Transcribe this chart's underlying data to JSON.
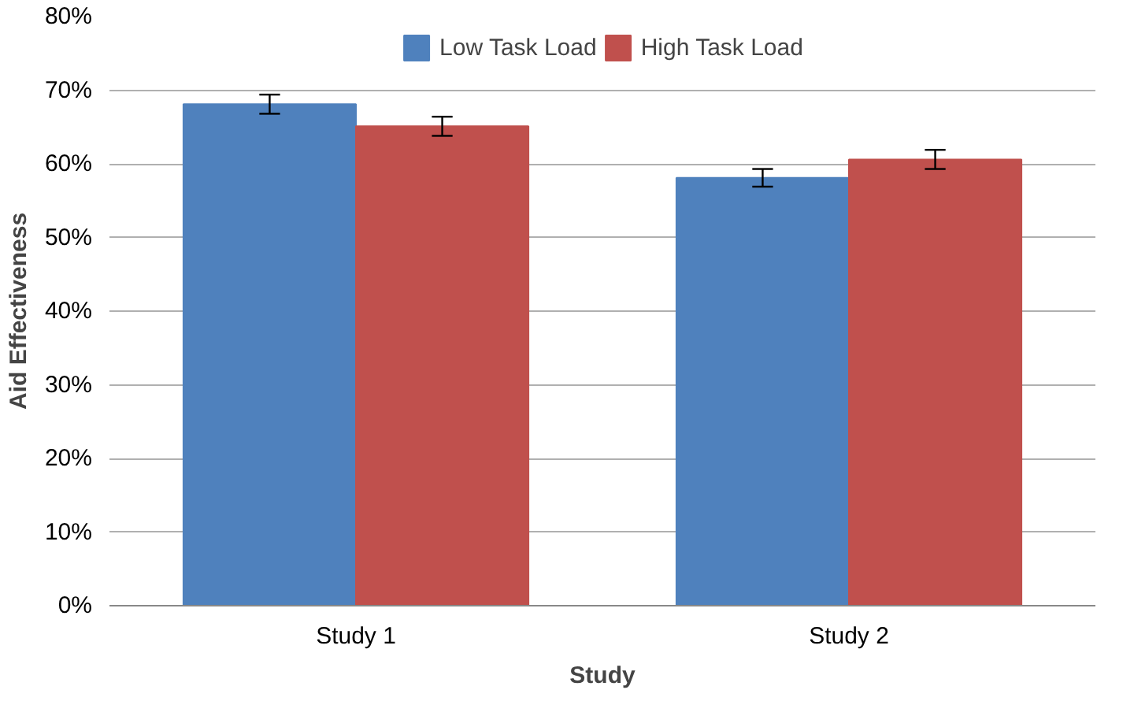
{
  "chart_data": {
    "type": "bar",
    "xlabel": "Study",
    "ylabel": "Aid Effectiveness",
    "categories": [
      "Study 1",
      "Study 2"
    ],
    "series": [
      {
        "name": "Low Task Load",
        "color": "#4f81bd",
        "values": [
          68.1,
          58.1
        ],
        "errors": [
          1.3,
          1.2
        ]
      },
      {
        "name": "High Task Load",
        "color": "#c0504d",
        "values": [
          65.1,
          60.6
        ],
        "errors": [
          1.3,
          1.3
        ]
      }
    ],
    "ylim": [
      0,
      80
    ],
    "yticks": [
      {
        "value": 0,
        "label": "0%"
      },
      {
        "value": 10,
        "label": "10%"
      },
      {
        "value": 20,
        "label": "20%"
      },
      {
        "value": 30,
        "label": "30%"
      },
      {
        "value": 40,
        "label": "40%"
      },
      {
        "value": 50,
        "label": "50%"
      },
      {
        "value": 60,
        "label": "60%"
      },
      {
        "value": 70,
        "label": "70%"
      },
      {
        "value": 80,
        "label": "80%"
      }
    ],
    "grid": "y",
    "legend": "top"
  }
}
